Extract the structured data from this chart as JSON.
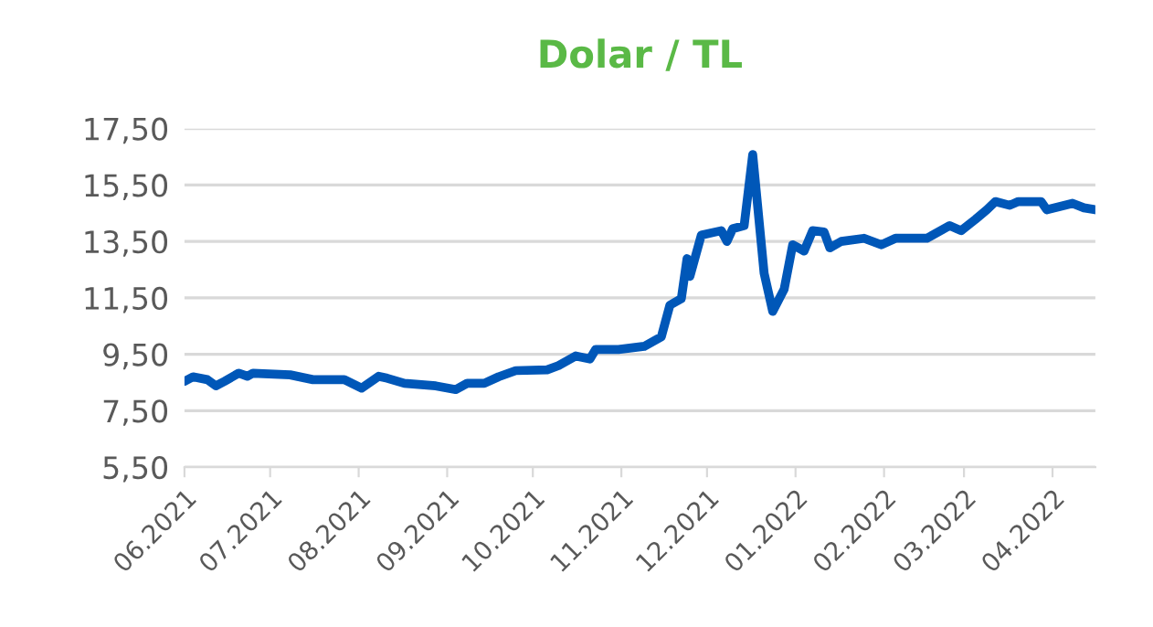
{
  "chart_data": {
    "type": "line",
    "title": "Dolar / TL",
    "x": [
      "2021-06-01",
      "2021-06-04",
      "2021-06-09",
      "2021-06-12",
      "2021-06-15",
      "2021-06-20",
      "2021-06-23",
      "2021-06-25",
      "2021-07-08",
      "2021-07-16",
      "2021-07-27",
      "2021-08-02",
      "2021-08-08",
      "2021-08-11",
      "2021-08-17",
      "2021-08-28",
      "2021-09-04",
      "2021-09-08",
      "2021-09-14",
      "2021-09-19",
      "2021-09-25",
      "2021-10-06",
      "2021-10-10",
      "2021-10-16",
      "2021-10-21",
      "2021-10-23",
      "2021-10-31",
      "2021-11-09",
      "2021-11-15",
      "2021-11-18",
      "2021-11-22",
      "2021-11-24",
      "2021-11-25",
      "2021-11-29",
      "2021-12-06",
      "2021-12-08",
      "2021-12-10",
      "2021-12-14",
      "2021-12-17",
      "2021-12-21",
      "2021-12-24",
      "2021-12-28",
      "2021-12-31",
      "2022-01-04",
      "2022-01-07",
      "2022-01-11",
      "2022-01-13",
      "2022-01-17",
      "2022-01-25",
      "2022-01-31",
      "2022-02-05",
      "2022-02-16",
      "2022-02-24",
      "2022-02-28",
      "2022-03-05",
      "2022-03-09",
      "2022-03-12",
      "2022-03-17",
      "2022-03-20",
      "2022-03-28",
      "2022-03-30",
      "2022-04-08",
      "2022-04-12",
      "2022-04-16"
    ],
    "series": [
      {
        "color": "#0057b8",
        "values": [
          8.54,
          8.7,
          8.6,
          8.38,
          8.54,
          8.83,
          8.72,
          8.83,
          8.77,
          8.6,
          8.6,
          8.3,
          8.72,
          8.65,
          8.47,
          8.38,
          8.25,
          8.47,
          8.47,
          8.7,
          8.92,
          8.95,
          9.1,
          9.44,
          9.33,
          9.67,
          9.67,
          9.78,
          10.12,
          11.24,
          11.47,
          12.89,
          12.26,
          13.72,
          13.88,
          13.5,
          13.95,
          14.06,
          16.58,
          12.37,
          11.02,
          11.8,
          13.38,
          13.16,
          13.88,
          13.83,
          13.27,
          13.5,
          13.61,
          13.38,
          13.61,
          13.61,
          14.06,
          13.88,
          14.28,
          14.62,
          14.91,
          14.78,
          14.91,
          14.91,
          14.62,
          14.85,
          14.69,
          14.62
        ]
      }
    ],
    "xlim": [
      "2021-06-01",
      "2022-04-16"
    ],
    "xticks": [
      {
        "value": "2021-06-01",
        "label": "06.2021"
      },
      {
        "value": "2021-07-01",
        "label": "07.2021"
      },
      {
        "value": "2021-08-01",
        "label": "08.2021"
      },
      {
        "value": "2021-09-01",
        "label": "09.2021"
      },
      {
        "value": "2021-10-01",
        "label": "10.2021"
      },
      {
        "value": "2021-11-01",
        "label": "11.2021"
      },
      {
        "value": "2021-12-01",
        "label": "12.2021"
      },
      {
        "value": "2022-01-01",
        "label": "01.2022"
      },
      {
        "value": "2022-02-01",
        "label": "02.2022"
      },
      {
        "value": "2022-03-01",
        "label": "03.2022"
      },
      {
        "value": "2022-04-01",
        "label": "04.2022"
      }
    ],
    "ylim": [
      5.5,
      17.5
    ],
    "yticks": [
      {
        "value": 5.5,
        "label": "5,50"
      },
      {
        "value": 7.5,
        "label": "7,50"
      },
      {
        "value": 9.5,
        "label": "9,50"
      },
      {
        "value": 11.5,
        "label": "11,50"
      },
      {
        "value": 13.5,
        "label": "13,50"
      },
      {
        "value": 15.5,
        "label": "15,50"
      },
      {
        "value": 17.5,
        "label": "17,50"
      }
    ],
    "grid": "y",
    "line_style": "solid",
    "marker": "none"
  }
}
